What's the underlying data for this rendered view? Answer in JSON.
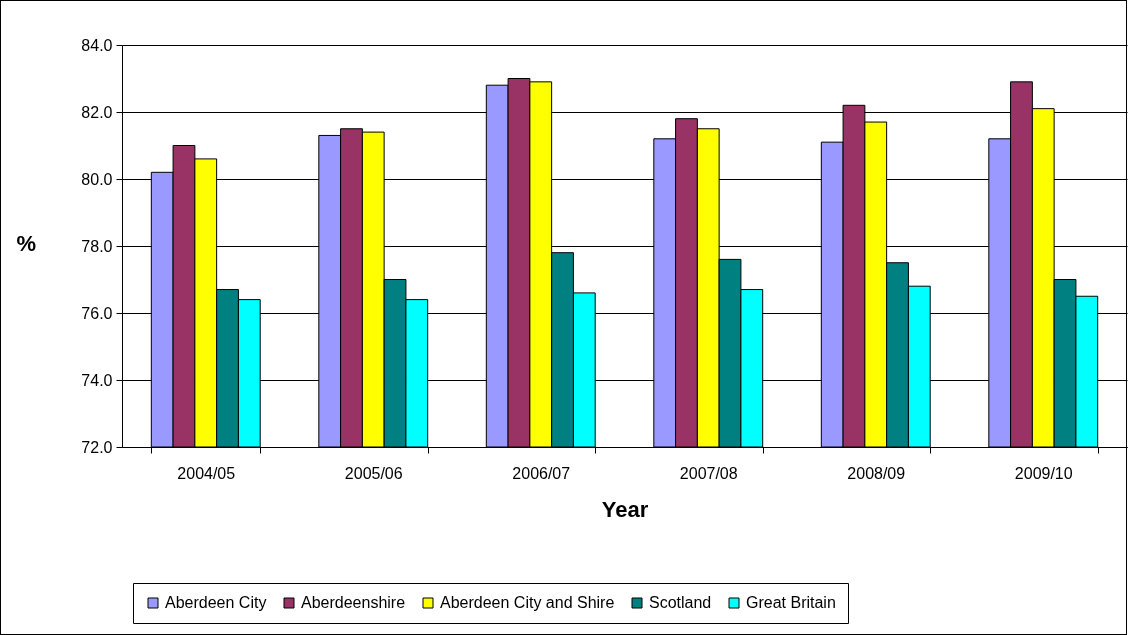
{
  "chart_data": {
    "type": "bar",
    "xlabel": "Year",
    "ylabel": "%",
    "categories": [
      "2004/05",
      "2005/06",
      "2006/07",
      "2007/08",
      "2008/09",
      "2009/10"
    ],
    "series": [
      {
        "name": "Aberdeen City",
        "color": "#9999ff",
        "values": [
          80.2,
          81.3,
          82.8,
          81.2,
          81.1,
          81.2
        ]
      },
      {
        "name": "Aberdeenshire",
        "color": "#993366",
        "values": [
          81.0,
          81.5,
          83.0,
          81.8,
          82.2,
          82.9
        ]
      },
      {
        "name": "Aberdeen City and Shire",
        "color": "#ffff00",
        "values": [
          80.6,
          81.4,
          82.9,
          81.5,
          81.7,
          82.1
        ]
      },
      {
        "name": "Scotland",
        "color": "#008080",
        "values": [
          76.7,
          77.0,
          77.8,
          77.6,
          77.5,
          77.0
        ]
      },
      {
        "name": "Great Britain",
        "color": "#00ffff",
        "values": [
          76.4,
          76.4,
          76.6,
          76.7,
          76.8,
          76.5
        ]
      }
    ],
    "ylim": [
      72,
      84
    ],
    "yticks": [
      {
        "value": 72,
        "label": "72.0"
      },
      {
        "value": 74,
        "label": "74.0"
      },
      {
        "value": 76,
        "label": "76.0"
      },
      {
        "value": 78,
        "label": "78.0"
      },
      {
        "value": 80,
        "label": "80.0"
      },
      {
        "value": 82,
        "label": "82.0"
      },
      {
        "value": 84,
        "label": "84.0"
      }
    ],
    "grid": "y",
    "legend": "bottom"
  }
}
